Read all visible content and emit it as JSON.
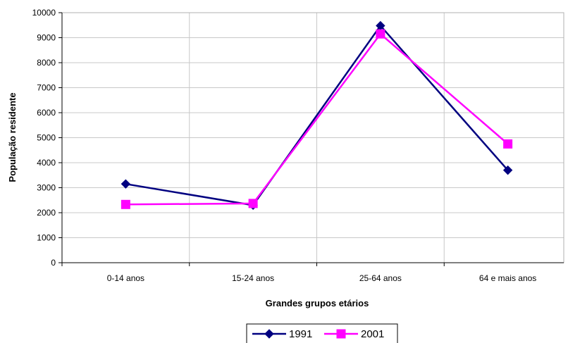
{
  "chart_data": {
    "type": "line",
    "categories": [
      "0-14 anos",
      "15-24 anos",
      "25-64 anos",
      "64 e mais anos"
    ],
    "series": [
      {
        "name": "1991",
        "values": [
          3150,
          2300,
          9480,
          3700
        ],
        "color": "#000080",
        "marker": "diamond"
      },
      {
        "name": "2001",
        "values": [
          2330,
          2370,
          9150,
          4750
        ],
        "color": "#ff00ff",
        "marker": "square"
      }
    ],
    "xlabel": "Grandes grupos etários",
    "ylabel": "População residente",
    "ylim": [
      0,
      10000
    ],
    "yticks": [
      0,
      1000,
      2000,
      3000,
      4000,
      5000,
      6000,
      7000,
      8000,
      9000,
      10000
    ],
    "grid": true,
    "legend": "bottom"
  }
}
